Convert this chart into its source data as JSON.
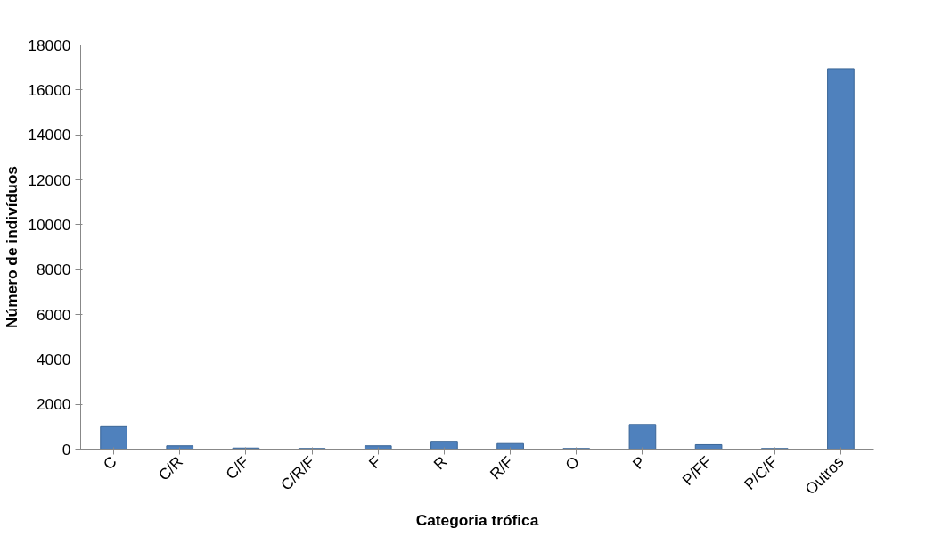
{
  "chart_data": {
    "type": "bar",
    "xlabel": "Categoria trófica",
    "ylabel": "Número de indivíduos",
    "categories": [
      "C",
      "C/R",
      "C/F",
      "C/R/F",
      "F",
      "R",
      "R/F",
      "O",
      "P",
      "P/FF",
      "P/C/F",
      "Outros"
    ],
    "values": [
      1000,
      150,
      50,
      30,
      150,
      350,
      250,
      30,
      1100,
      200,
      30,
      16950
    ],
    "color": "#4f81bd",
    "ylim": [
      0,
      18000
    ],
    "yticks": [
      0,
      2000,
      4000,
      6000,
      8000,
      10000,
      12000,
      14000,
      16000,
      18000
    ],
    "grid": false
  }
}
